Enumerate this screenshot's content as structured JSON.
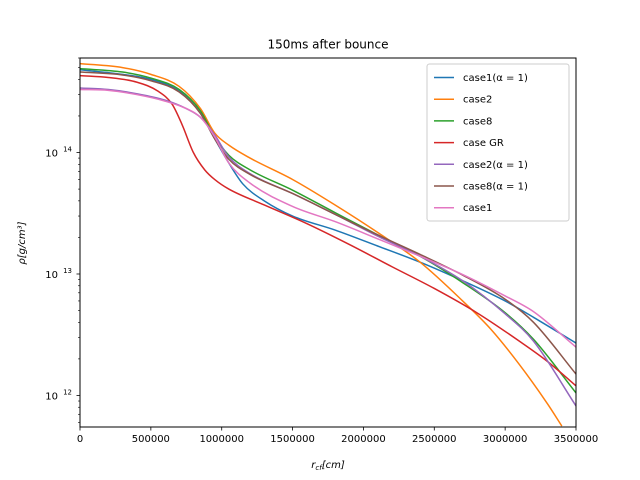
{
  "chart_data": {
    "type": "line",
    "title": "150ms after bounce",
    "xlabel": "r_cf[cm]",
    "ylabel": "ρ[g/cm³]",
    "xlim": [
      0,
      3500000
    ],
    "ylim": [
      550000000000.0,
      600000000000000.0
    ],
    "yscale": "log",
    "grid": false,
    "legend_position": "top-right",
    "x_ticks": [
      {
        "value": 0,
        "label": "0"
      },
      {
        "value": 500000,
        "label": "500000"
      },
      {
        "value": 1000000,
        "label": "1000000"
      },
      {
        "value": 1500000,
        "label": "1500000"
      },
      {
        "value": 2000000,
        "label": "2000000"
      },
      {
        "value": 2500000,
        "label": "2500000"
      },
      {
        "value": 3000000,
        "label": "3000000"
      },
      {
        "value": 3500000,
        "label": "3500000"
      }
    ],
    "y_ticks": [
      {
        "value": 1000000000000.0,
        "base": "10",
        "exp": "12"
      },
      {
        "value": 10000000000000.0,
        "base": "10",
        "exp": "13"
      },
      {
        "value": 100000000000000.0,
        "base": "10",
        "exp": "14"
      }
    ],
    "series": [
      {
        "name": "case1(α = 1)",
        "color": "#1f77b4",
        "points": [
          [
            0,
            480000000000000.0
          ],
          [
            300000,
            440000000000000.0
          ],
          [
            500000,
            400000000000000.0
          ],
          [
            700000,
            320000000000000.0
          ],
          [
            850000,
            210000000000000.0
          ],
          [
            950000,
            130000000000000.0
          ],
          [
            1050000,
            82000000000000.0
          ],
          [
            1150000,
            55000000000000.0
          ],
          [
            1300000,
            40000000000000.0
          ],
          [
            1500000,
            30000000000000.0
          ],
          [
            1800000,
            23000000000000.0
          ],
          [
            2100000,
            17000000000000.0
          ],
          [
            2400000,
            12500000000000.0
          ],
          [
            2700000,
            8800000000000.0
          ],
          [
            3000000,
            6000000000000.0
          ],
          [
            3200000,
            4400000000000.0
          ],
          [
            3500000,
            2700000000000.0
          ]
        ]
      },
      {
        "name": "case2",
        "color": "#ff7f0e",
        "points": [
          [
            0,
            540000000000000.0
          ],
          [
            300000,
            500000000000000.0
          ],
          [
            500000,
            440000000000000.0
          ],
          [
            700000,
            350000000000000.0
          ],
          [
            850000,
            230000000000000.0
          ],
          [
            950000,
            145000000000000.0
          ],
          [
            1050000,
            115000000000000.0
          ],
          [
            1200000,
            90000000000000.0
          ],
          [
            1500000,
            60000000000000.0
          ],
          [
            1800000,
            37000000000000.0
          ],
          [
            2100000,
            22000000000000.0
          ],
          [
            2400000,
            12500000000000.0
          ],
          [
            2700000,
            6000000000000.0
          ],
          [
            2900000,
            3500000000000.0
          ],
          [
            3100000,
            1800000000000.0
          ],
          [
            3300000,
            850000000000.0
          ],
          [
            3400000,
            560000000000.0
          ]
        ]
      },
      {
        "name": "case8",
        "color": "#2ca02c",
        "points": [
          [
            0,
            490000000000000.0
          ],
          [
            300000,
            460000000000000.0
          ],
          [
            500000,
            410000000000000.0
          ],
          [
            700000,
            330000000000000.0
          ],
          [
            850000,
            220000000000000.0
          ],
          [
            950000,
            135000000000000.0
          ],
          [
            1050000,
            95000000000000.0
          ],
          [
            1200000,
            72000000000000.0
          ],
          [
            1500000,
            49000000000000.0
          ],
          [
            1800000,
            32000000000000.0
          ],
          [
            2100000,
            21000000000000.0
          ],
          [
            2400000,
            14000000000000.0
          ],
          [
            2700000,
            8500000000000.0
          ],
          [
            3000000,
            4800000000000.0
          ],
          [
            3200000,
            2900000000000.0
          ],
          [
            3500000,
            1050000000000.0
          ]
        ]
      },
      {
        "name": "case GR",
        "color": "#d62728",
        "points": [
          [
            0,
            430000000000000.0
          ],
          [
            200000,
            415000000000000.0
          ],
          [
            400000,
            380000000000000.0
          ],
          [
            550000,
            320000000000000.0
          ],
          [
            650000,
            250000000000000.0
          ],
          [
            720000,
            170000000000000.0
          ],
          [
            800000,
            100000000000000.0
          ],
          [
            880000,
            72000000000000.0
          ],
          [
            950000,
            60000000000000.0
          ],
          [
            1050000,
            50000000000000.0
          ],
          [
            1300000,
            37000000000000.0
          ],
          [
            1600000,
            26000000000000.0
          ],
          [
            1900000,
            17500000000000.0
          ],
          [
            2200000,
            11500000000000.0
          ],
          [
            2500000,
            7600000000000.0
          ],
          [
            2800000,
            4800000000000.0
          ],
          [
            3100000,
            2800000000000.0
          ],
          [
            3300000,
            1900000000000.0
          ],
          [
            3500000,
            1200000000000.0
          ]
        ]
      },
      {
        "name": "case2(α = 1)",
        "color": "#9467bd",
        "points": [
          [
            0,
            340000000000000.0
          ],
          [
            200000,
            330000000000000.0
          ],
          [
            400000,
            305000000000000.0
          ],
          [
            600000,
            270000000000000.0
          ],
          [
            750000,
            230000000000000.0
          ],
          [
            850000,
            195000000000000.0
          ],
          [
            950000,
            140000000000000.0
          ],
          [
            1050000,
            92000000000000.0
          ],
          [
            1200000,
            67000000000000.0
          ],
          [
            1500000,
            46000000000000.0
          ],
          [
            1800000,
            31000000000000.0
          ],
          [
            2100000,
            20500000000000.0
          ],
          [
            2400000,
            14000000000000.0
          ],
          [
            2700000,
            8800000000000.0
          ],
          [
            3000000,
            4700000000000.0
          ],
          [
            3200000,
            2800000000000.0
          ],
          [
            3500000,
            820000000000.0
          ]
        ]
      },
      {
        "name": "case8(α = 1)",
        "color": "#8c564b",
        "points": [
          [
            0,
            460000000000000.0
          ],
          [
            300000,
            435000000000000.0
          ],
          [
            500000,
            390000000000000.0
          ],
          [
            700000,
            315000000000000.0
          ],
          [
            850000,
            210000000000000.0
          ],
          [
            950000,
            130000000000000.0
          ],
          [
            1050000,
            88000000000000.0
          ],
          [
            1200000,
            66000000000000.0
          ],
          [
            1500000,
            46000000000000.0
          ],
          [
            1800000,
            31000000000000.0
          ],
          [
            2100000,
            21000000000000.0
          ],
          [
            2400000,
            14500000000000.0
          ],
          [
            2700000,
            9800000000000.0
          ],
          [
            3000000,
            6200000000000.0
          ],
          [
            3200000,
            4000000000000.0
          ],
          [
            3500000,
            1500000000000.0
          ]
        ]
      },
      {
        "name": "case1",
        "color": "#e377c2",
        "points": [
          [
            0,
            330000000000000.0
          ],
          [
            200000,
            325000000000000.0
          ],
          [
            400000,
            300000000000000.0
          ],
          [
            600000,
            265000000000000.0
          ],
          [
            750000,
            230000000000000.0
          ],
          [
            850000,
            195000000000000.0
          ],
          [
            950000,
            135000000000000.0
          ],
          [
            1050000,
            82000000000000.0
          ],
          [
            1200000,
            56000000000000.0
          ],
          [
            1500000,
            36000000000000.0
          ],
          [
            1800000,
            27000000000000.0
          ],
          [
            2100000,
            19500000000000.0
          ],
          [
            2400000,
            14000000000000.0
          ],
          [
            2700000,
            9900000000000.0
          ],
          [
            3000000,
            6600000000000.0
          ],
          [
            3200000,
            4900000000000.0
          ],
          [
            3500000,
            2500000000000.0
          ]
        ]
      }
    ]
  }
}
